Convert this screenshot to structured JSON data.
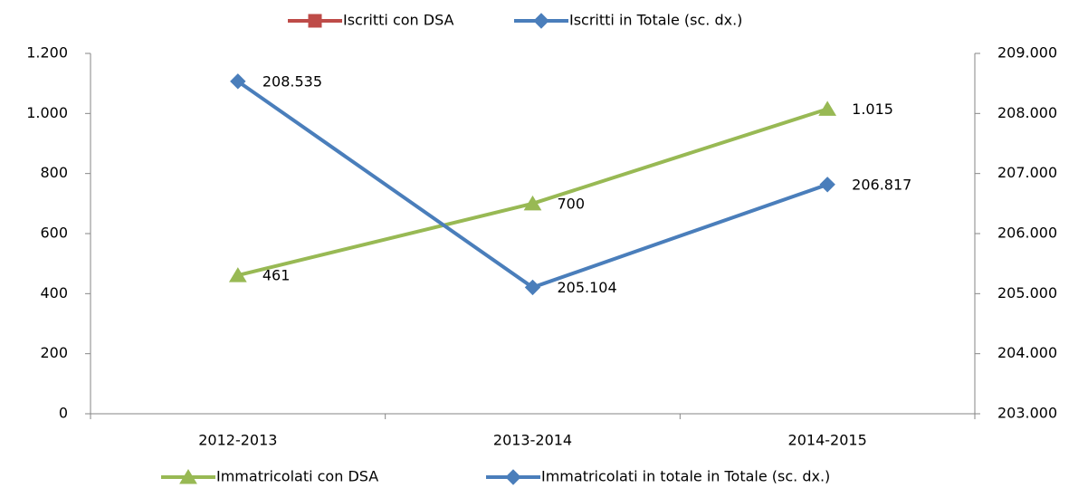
{
  "chart_data": {
    "type": "line",
    "categories": [
      "2012-2013",
      "2013-2014",
      "2014-2015"
    ],
    "series": [
      {
        "name": "Iscritti con DSA",
        "color": "#be4b48",
        "marker": "square",
        "legend": "top",
        "axis": "y",
        "values": [
          null,
          null,
          null
        ]
      },
      {
        "name": "Iscritti in Totale  (sc. dx.)",
        "color": "#4a7ebb",
        "marker": "diamond",
        "legend": "top",
        "axis": "y2",
        "values": [
          null,
          null,
          null
        ]
      },
      {
        "name": "Immatricolati con DSA",
        "color": "#98b954",
        "marker": "triangle",
        "legend": "bottom",
        "axis": "y",
        "values": [
          461,
          700,
          1015
        ],
        "value_labels": [
          "461",
          "700",
          "1.015"
        ]
      },
      {
        "name": "Immatricolati in totale in Totale (sc. dx.)",
        "color": "#4a7ebb",
        "marker": "diamond",
        "legend": "bottom",
        "axis": "y2",
        "values": [
          208535,
          205104,
          206817
        ],
        "value_labels": [
          "208.535",
          "205.104",
          "206.817"
        ]
      }
    ],
    "ylim": [
      0,
      1200
    ],
    "yticks": [
      0,
      200,
      400,
      600,
      800,
      {
        "value": 1000,
        "label": "1.000"
      },
      {
        "value": 1200,
        "label": "1.200"
      }
    ],
    "y2lim": [
      203000,
      209000
    ],
    "y2ticks": [
      {
        "value": 203000,
        "label": "203.000"
      },
      {
        "value": 204000,
        "label": "204.000"
      },
      {
        "value": 205000,
        "label": "205.000"
      },
      {
        "value": 206000,
        "label": "206.000"
      },
      {
        "value": 207000,
        "label": "207.000"
      },
      {
        "value": 208000,
        "label": "208.000"
      },
      {
        "value": 209000,
        "label": "209.000"
      }
    ],
    "grid": false
  }
}
